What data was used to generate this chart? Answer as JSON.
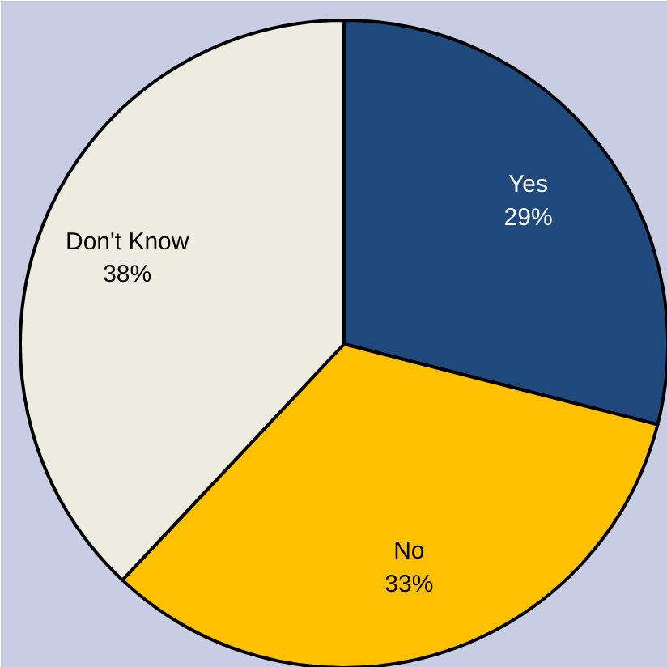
{
  "chart_data": {
    "type": "pie",
    "categories": [
      "Yes",
      "No",
      "Don't Know"
    ],
    "values": [
      29,
      33,
      38
    ],
    "colors": [
      "#1f497d",
      "#ffc000",
      "#eeece1"
    ],
    "value_labels": [
      "29%",
      "33%",
      "38%"
    ]
  }
}
